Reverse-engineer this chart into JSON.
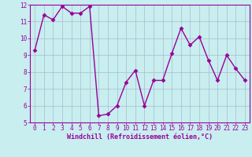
{
  "x": [
    0,
    1,
    2,
    3,
    4,
    5,
    6,
    7,
    8,
    9,
    10,
    11,
    12,
    13,
    14,
    15,
    16,
    17,
    18,
    19,
    20,
    21,
    22,
    23
  ],
  "y": [
    9.3,
    11.4,
    11.1,
    11.9,
    11.5,
    11.5,
    11.9,
    5.4,
    5.5,
    6.0,
    7.4,
    8.1,
    6.0,
    7.5,
    7.5,
    9.1,
    10.6,
    9.6,
    10.1,
    8.7,
    7.5,
    9.0,
    8.2,
    7.5
  ],
  "line_color": "#990099",
  "marker": "D",
  "marker_size": 2.5,
  "bg_color": "#c8eef0",
  "grid_color": "#aabbcc",
  "xlabel": "Windchill (Refroidissement éolien,°C)",
  "line_width": 1.0,
  "tick_color": "#990099",
  "label_color": "#990099",
  "ylim": [
    5,
    12
  ],
  "xlim": [
    -0.5,
    23.5
  ],
  "yticks": [
    5,
    6,
    7,
    8,
    9,
    10,
    11,
    12
  ],
  "xticks": [
    0,
    1,
    2,
    3,
    4,
    5,
    6,
    7,
    8,
    9,
    10,
    11,
    12,
    13,
    14,
    15,
    16,
    17,
    18,
    19,
    20,
    21,
    22,
    23
  ],
  "figsize": [
    3.2,
    2.0
  ],
  "dpi": 100,
  "tick_fontsize": 5.5,
  "xlabel_fontsize": 6.0
}
